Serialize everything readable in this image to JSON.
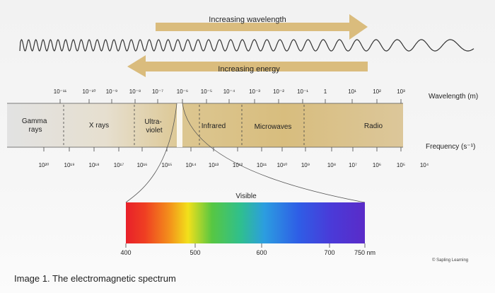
{
  "top_arrow": {
    "label": "Increasing wavelength",
    "color": "#d8b876"
  },
  "bottom_arrow": {
    "label": "Increasing energy",
    "color": "#d8b876"
  },
  "wavelength": {
    "unit_label": "Wavelength (m)",
    "ticks": [
      "10⁻¹¹",
      "10⁻¹⁰",
      "10⁻⁹",
      "10⁻⁸",
      "10⁻⁷",
      "10⁻⁶",
      "10⁻⁵",
      "10⁻⁴",
      "10⁻³",
      "10⁻²",
      "10⁻¹",
      "1",
      "10¹",
      "10²",
      "10³"
    ]
  },
  "frequency": {
    "unit_label": "Frequency (s⁻¹)",
    "ticks": [
      "10²⁰",
      "10¹⁹",
      "10¹⁸",
      "10¹⁷",
      "10¹⁶",
      "10¹⁵",
      "10¹⁴",
      "10¹³",
      "10¹²",
      "10¹¹",
      "10¹⁰",
      "10⁹",
      "10⁸",
      "10⁷",
      "10⁶",
      "10⁵",
      "10⁴"
    ]
  },
  "regions": [
    {
      "name": "gamma",
      "lines": [
        "Gamma",
        "rays"
      ]
    },
    {
      "name": "xrays",
      "lines": [
        "X rays"
      ]
    },
    {
      "name": "ultraviolet",
      "lines": [
        "Ultra-",
        "violet"
      ]
    },
    {
      "name": "infrared",
      "lines": [
        "Infrared"
      ]
    },
    {
      "name": "microwaves",
      "lines": [
        "Microwaves"
      ]
    },
    {
      "name": "radio",
      "lines": [
        "Radio"
      ]
    }
  ],
  "visible": {
    "label": "Visible",
    "ticks": [
      "400",
      "500",
      "600",
      "700",
      "750 nm"
    ]
  },
  "credit": "© Sapling Learning",
  "caption": "Image 1. The electromagnetic spectrum"
}
